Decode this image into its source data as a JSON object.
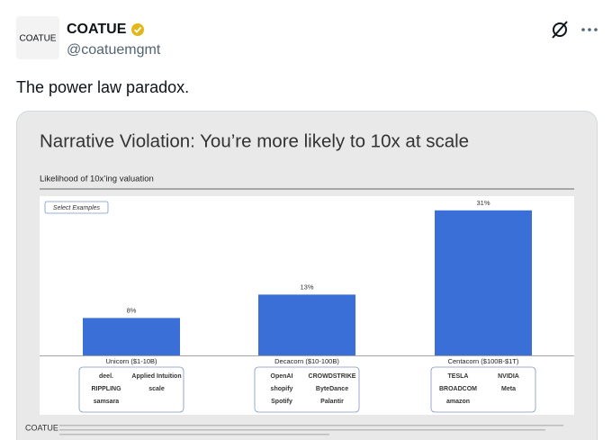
{
  "post": {
    "avatar_text": "COATUE",
    "name": "COATUE",
    "handle": "@coatuemgmt",
    "text": "The power law paradox."
  },
  "chart_data": {
    "type": "bar",
    "title": "Narrative Violation: You’re more likely to 10x at scale",
    "subtitle": "Likelihood of 10x’ing valuation",
    "annotation": "Select Examples",
    "categories": [
      "Unicorn ($1-10B)",
      "Decacorn ($10-100B)",
      "Centacorn ($100B-$1T)"
    ],
    "values": [
      8,
      13,
      31
    ],
    "value_labels": [
      "8%",
      "13%",
      "31%"
    ],
    "color": "#3a6fd8",
    "examples": [
      [
        "deel.",
        "Applied Intuition",
        "RIPPLING",
        "scale",
        "samsara"
      ],
      [
        "OpenAI",
        "CROWDSTRIKE",
        "shopify",
        "ByteDance",
        "Spotify",
        "Palantir"
      ],
      [
        "TESLA",
        "NVIDIA",
        "BROADCOM",
        "Meta",
        "amazon"
      ]
    ],
    "footer": "COATUE"
  }
}
